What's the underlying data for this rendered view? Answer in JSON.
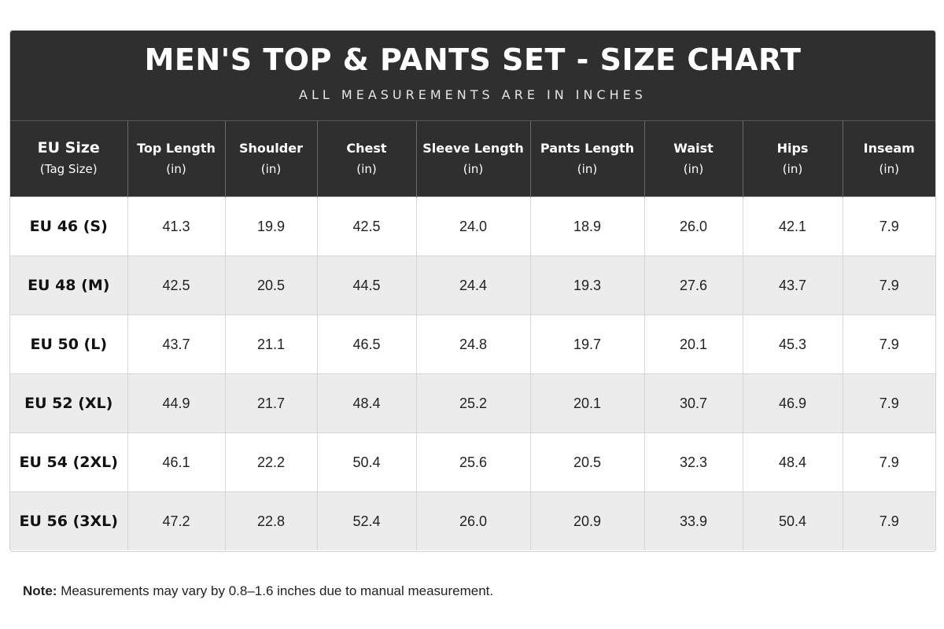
{
  "header": {
    "title": "MEN'S TOP & PANTS SET - SIZE CHART",
    "subtitle": "ALL MEASUREMENTS ARE IN INCHES"
  },
  "table": {
    "columns": [
      {
        "label": "EU Size",
        "sub": "(Tag Size)"
      },
      {
        "label": "Top Length",
        "sub": "(in)"
      },
      {
        "label": "Shoulder",
        "sub": "(in)"
      },
      {
        "label": "Chest",
        "sub": "(in)"
      },
      {
        "label": "Sleeve Length",
        "sub": "(in)"
      },
      {
        "label": "Pants Length",
        "sub": "(in)"
      },
      {
        "label": "Waist",
        "sub": "(in)"
      },
      {
        "label": "Hips",
        "sub": "(in)"
      },
      {
        "label": "Inseam",
        "sub": "(in)"
      }
    ],
    "rows": [
      [
        "EU 46 (S)",
        "41.3",
        "19.9",
        "42.5",
        "24.0",
        "18.9",
        "26.0",
        "42.1",
        "7.9"
      ],
      [
        "EU 48 (M)",
        "42.5",
        "20.5",
        "44.5",
        "24.4",
        "19.3",
        "27.6",
        "43.7",
        "7.9"
      ],
      [
        "EU 50 (L)",
        "43.7",
        "21.1",
        "46.5",
        "24.8",
        "19.7",
        "20.1",
        "45.3",
        "7.9"
      ],
      [
        "EU 52 (XL)",
        "44.9",
        "21.7",
        "48.4",
        "25.2",
        "20.1",
        "30.7",
        "46.9",
        "7.9"
      ],
      [
        "EU 54 (2XL)",
        "46.1",
        "22.2",
        "50.4",
        "25.6",
        "20.5",
        "32.3",
        "48.4",
        "7.9"
      ],
      [
        "EU 56 (3XL)",
        "47.2",
        "22.8",
        "52.4",
        "26.0",
        "20.9",
        "33.9",
        "50.4",
        "7.9"
      ]
    ]
  },
  "note": {
    "label": "Note:",
    "text": "Measurements may vary by 0.8–1.6 inches due to manual measurement."
  }
}
